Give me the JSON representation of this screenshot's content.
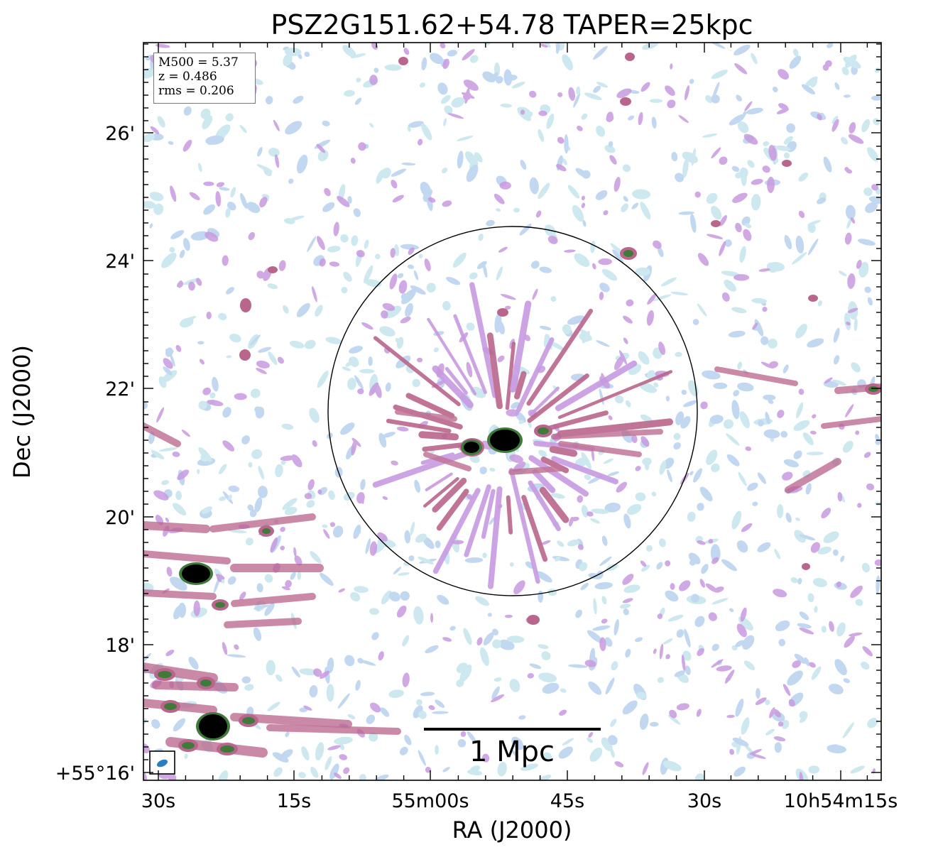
{
  "title": "PSZ2G151.62+54.78 TAPER=25kpc",
  "xlabel": "RA (J2000)",
  "ylabel": "Dec (J2000)",
  "xticks": [
    "30s",
    "15s",
    "55m00s",
    "45s",
    "30s",
    "10h54m15s"
  ],
  "yticks": [
    "26'",
    "24'",
    "22'",
    "20'",
    "18'",
    "+55°16'"
  ],
  "info": {
    "line1": "M500 = 5.37",
    "line2": "z = 0.486",
    "line3": "rms = 0.206"
  },
  "scalebar": {
    "label": "1 Mpc"
  },
  "colors": {
    "light_emission": "#b8d0ee",
    "mid_emission": "#c89ae0",
    "strong_emission": "#b9668c",
    "peak_emission": "#3f7a3a",
    "source_core": "#000000",
    "beam": "#2a7fc1"
  }
}
